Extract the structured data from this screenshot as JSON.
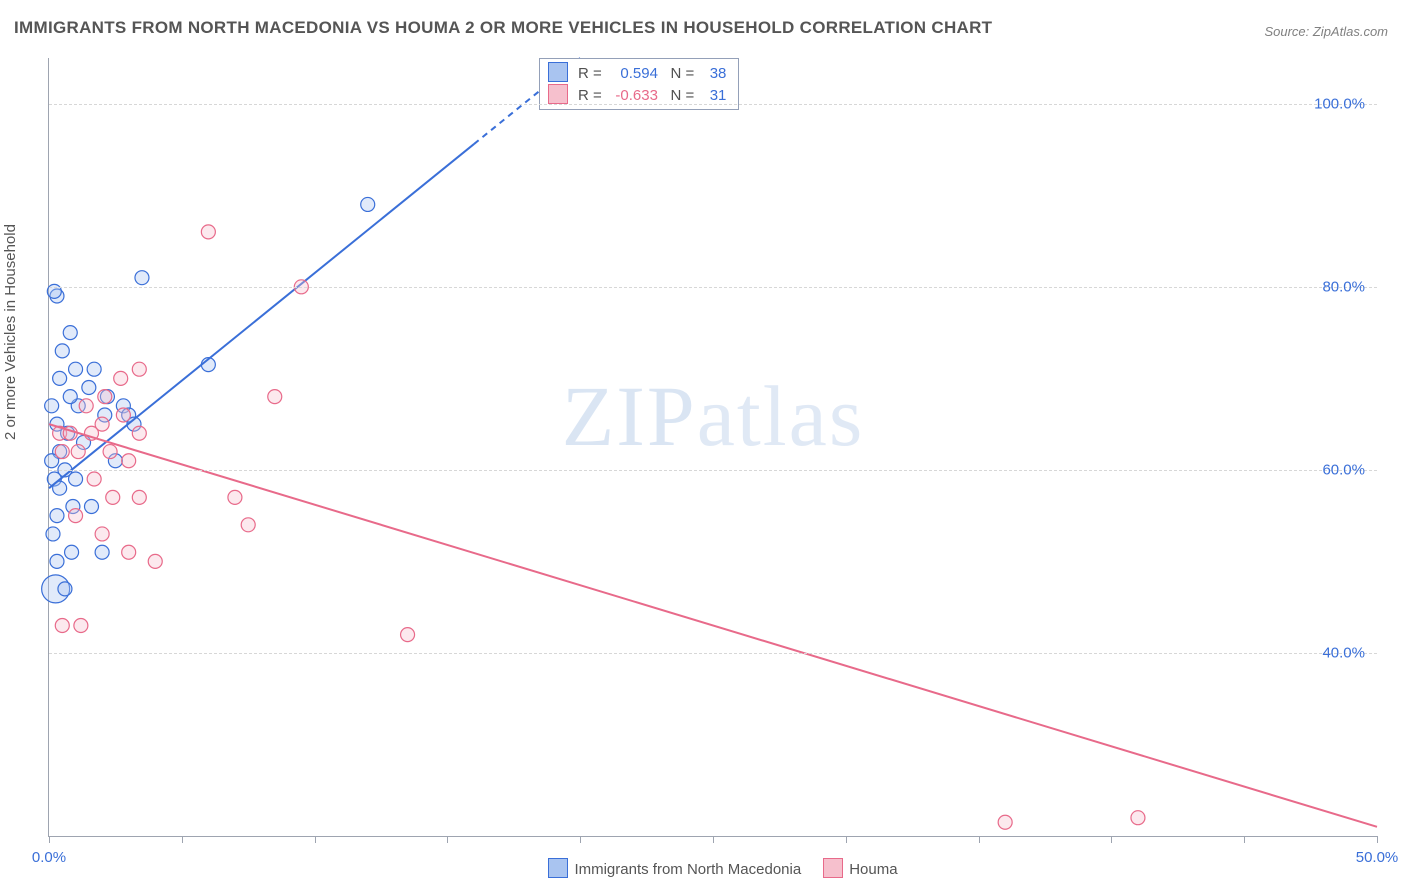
{
  "title": "IMMIGRANTS FROM NORTH MACEDONIA VS HOUMA 2 OR MORE VEHICLES IN HOUSEHOLD CORRELATION CHART",
  "source_label": "Source: ZipAtlas.com",
  "watermark_zip": "ZIP",
  "watermark_atlas": "atlas",
  "y_axis_label": "2 or more Vehicles in Household",
  "chart": {
    "type": "scatter-correlation",
    "background_color": "#ffffff",
    "grid_color": "#d7d7d7",
    "axis_color": "#9ea4b0",
    "tick_label_color": "#3a6fd8",
    "xlim": [
      0,
      50
    ],
    "ylim": [
      20,
      105
    ],
    "x_ticks": [
      0,
      5,
      10,
      15,
      20,
      25,
      30,
      35,
      40,
      45,
      50
    ],
    "x_tick_labels": {
      "0": "0.0%",
      "50": "50.0%"
    },
    "y_ticks": [
      40,
      60,
      80,
      100
    ],
    "y_tick_format": ".0%",
    "marker_radius": 7,
    "marker_radius_large": 14,
    "marker_stroke_width": 1.2,
    "marker_fill_opacity": 0.35,
    "line_width": 2,
    "series": [
      {
        "key": "immigrants",
        "label": "Immigrants from North Macedonia",
        "color_stroke": "#3a6fd8",
        "color_fill": "#a9c4f0",
        "R": 0.594,
        "N": 38,
        "trend": {
          "x1": 0,
          "y1": 58,
          "x2": 20,
          "y2": 105,
          "dash_from_x": 16
        },
        "points": [
          {
            "x": 0.3,
            "y": 79
          },
          {
            "x": 0.2,
            "y": 79.5
          },
          {
            "x": 0.8,
            "y": 75
          },
          {
            "x": 0.5,
            "y": 73
          },
          {
            "x": 1.0,
            "y": 71
          },
          {
            "x": 0.4,
            "y": 70
          },
          {
            "x": 1.5,
            "y": 69
          },
          {
            "x": 2.2,
            "y": 68
          },
          {
            "x": 2.8,
            "y": 67
          },
          {
            "x": 1.1,
            "y": 67
          },
          {
            "x": 2.1,
            "y": 66
          },
          {
            "x": 3.0,
            "y": 66
          },
          {
            "x": 0.3,
            "y": 65
          },
          {
            "x": 0.7,
            "y": 64
          },
          {
            "x": 1.3,
            "y": 63
          },
          {
            "x": 0.4,
            "y": 62
          },
          {
            "x": 0.1,
            "y": 61
          },
          {
            "x": 0.6,
            "y": 60
          },
          {
            "x": 0.2,
            "y": 59
          },
          {
            "x": 1.0,
            "y": 59
          },
          {
            "x": 0.4,
            "y": 58
          },
          {
            "x": 0.9,
            "y": 56
          },
          {
            "x": 0.3,
            "y": 55
          },
          {
            "x": 1.6,
            "y": 56
          },
          {
            "x": 0.15,
            "y": 53
          },
          {
            "x": 0.85,
            "y": 51
          },
          {
            "x": 0.3,
            "y": 50
          },
          {
            "x": 2.0,
            "y": 51
          },
          {
            "x": 0.25,
            "y": 47,
            "r": 14
          },
          {
            "x": 0.6,
            "y": 47
          },
          {
            "x": 3.5,
            "y": 81
          },
          {
            "x": 6.0,
            "y": 71.5
          },
          {
            "x": 12.0,
            "y": 89
          },
          {
            "x": 3.2,
            "y": 65
          },
          {
            "x": 2.5,
            "y": 61
          },
          {
            "x": 0.1,
            "y": 67
          },
          {
            "x": 0.8,
            "y": 68
          },
          {
            "x": 1.7,
            "y": 71
          }
        ]
      },
      {
        "key": "houma",
        "label": "Houma",
        "color_stroke": "#e86a8a",
        "color_fill": "#f6c0cd",
        "R": -0.633,
        "N": 31,
        "trend": {
          "x1": 0,
          "y1": 65,
          "x2": 50,
          "y2": 21
        },
        "points": [
          {
            "x": 0.4,
            "y": 64
          },
          {
            "x": 0.8,
            "y": 64
          },
          {
            "x": 1.6,
            "y": 64
          },
          {
            "x": 0.5,
            "y": 62
          },
          {
            "x": 1.1,
            "y": 62
          },
          {
            "x": 2.3,
            "y": 62
          },
          {
            "x": 3.0,
            "y": 61
          },
          {
            "x": 1.7,
            "y": 59
          },
          {
            "x": 2.4,
            "y": 57
          },
          {
            "x": 3.4,
            "y": 57
          },
          {
            "x": 1.0,
            "y": 55
          },
          {
            "x": 2.0,
            "y": 53
          },
          {
            "x": 3.0,
            "y": 51
          },
          {
            "x": 4.0,
            "y": 50
          },
          {
            "x": 0.5,
            "y": 43
          },
          {
            "x": 1.2,
            "y": 43
          },
          {
            "x": 7.0,
            "y": 57
          },
          {
            "x": 7.5,
            "y": 54
          },
          {
            "x": 8.5,
            "y": 68
          },
          {
            "x": 9.5,
            "y": 80
          },
          {
            "x": 6.0,
            "y": 86
          },
          {
            "x": 13.5,
            "y": 42
          },
          {
            "x": 2.7,
            "y": 70
          },
          {
            "x": 3.4,
            "y": 71
          },
          {
            "x": 2.1,
            "y": 68
          },
          {
            "x": 2.8,
            "y": 66
          },
          {
            "x": 3.4,
            "y": 64
          },
          {
            "x": 36.0,
            "y": 21.5
          },
          {
            "x": 41.0,
            "y": 22
          },
          {
            "x": 1.4,
            "y": 67
          },
          {
            "x": 2.0,
            "y": 65
          }
        ]
      }
    ]
  },
  "legend_box": {
    "rows": [
      {
        "swatch_fill": "#a9c4f0",
        "swatch_stroke": "#3a6fd8",
        "r_label": "R =",
        "r_val": "0.594",
        "r_class": "val-blue",
        "n_label": "N =",
        "n_val": "38"
      },
      {
        "swatch_fill": "#f6c0cd",
        "swatch_stroke": "#e86a8a",
        "r_label": "R =",
        "r_val": "-0.633",
        "r_class": "val-pink",
        "n_label": "N =",
        "n_val": "31"
      }
    ]
  },
  "bottom_legend": {
    "items": [
      {
        "swatch_fill": "#a9c4f0",
        "swatch_stroke": "#3a6fd8",
        "label": "Immigrants from North Macedonia"
      },
      {
        "swatch_fill": "#f6c0cd",
        "swatch_stroke": "#e86a8a",
        "label": "Houma"
      }
    ]
  }
}
